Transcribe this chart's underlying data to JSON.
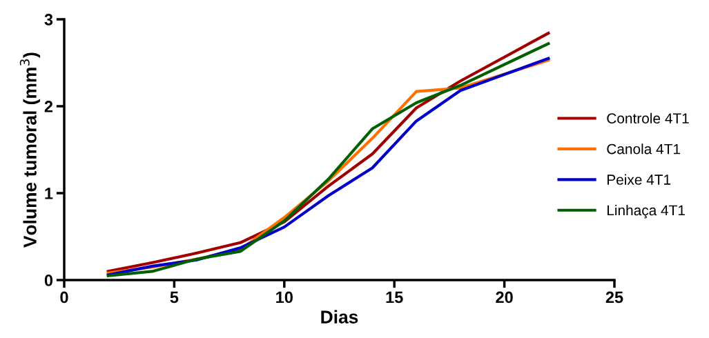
{
  "chart_data": {
    "type": "line",
    "xlabel": "Dias",
    "ylabel": "Volume tumoral (mm$^{3}$)",
    "x": [
      2,
      4,
      6,
      8,
      10,
      12,
      14,
      16,
      18,
      22
    ],
    "series": [
      {
        "name": "Controle 4T1",
        "color": "#a00000",
        "values": [
          0.1,
          0.2,
          0.31,
          0.43,
          0.67,
          1.08,
          1.45,
          1.98,
          2.29,
          2.84
        ]
      },
      {
        "name": "Canola 4T1",
        "color": "#ff7000",
        "values": [
          0.08,
          0.15,
          0.24,
          0.35,
          0.72,
          1.14,
          1.63,
          2.17,
          2.21,
          2.53
        ]
      },
      {
        "name": "Peixe 4T1",
        "color": "#0000c8",
        "values": [
          0.06,
          0.16,
          0.23,
          0.37,
          0.61,
          0.97,
          1.29,
          1.83,
          2.18,
          2.55
        ]
      },
      {
        "name": "Linhaça 4T1",
        "color": "#006000",
        "values": [
          0.05,
          0.1,
          0.24,
          0.33,
          0.68,
          1.16,
          1.74,
          2.04,
          2.24,
          2.72
        ]
      }
    ],
    "xlim": [
      0,
      25
    ],
    "xticks": [
      0,
      5,
      10,
      15,
      20,
      25
    ],
    "ylim": [
      0,
      3
    ],
    "yticks": [
      0,
      1,
      2,
      3
    ],
    "grid": false,
    "legend": "right",
    "marker": "none",
    "line_style": "solid"
  }
}
